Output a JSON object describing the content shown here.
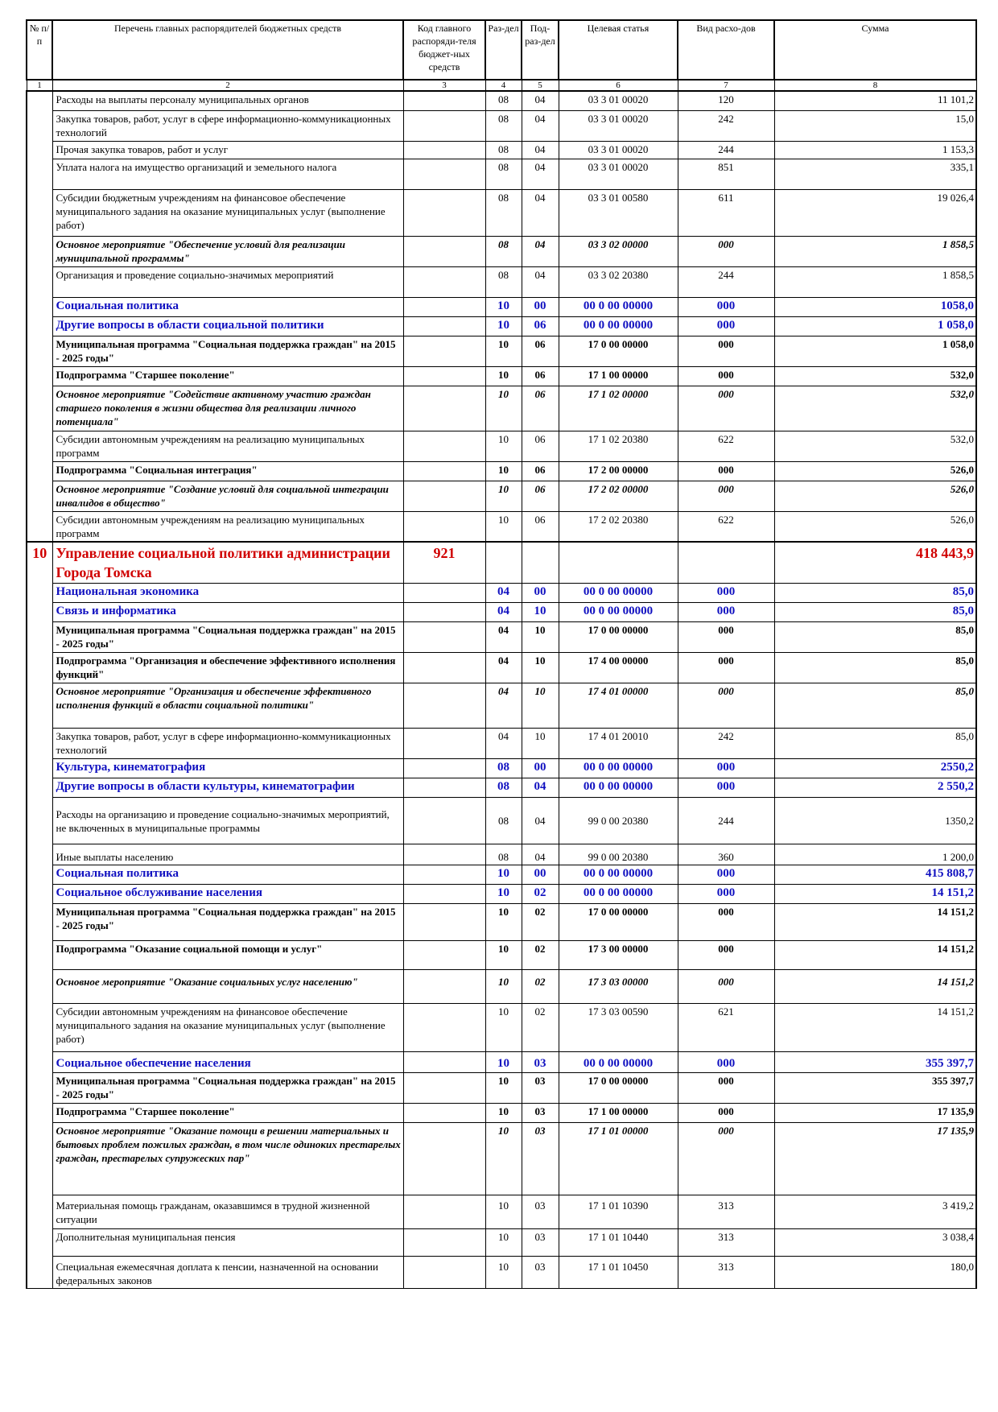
{
  "header": {
    "col1": "№ п/п",
    "col2": "Перечень главных распорядителей бюджетных средств",
    "col3": "Код главного распоряди-теля бюджет-ных средств",
    "col4": "Раз-дел",
    "col5": "Под-раз-дел",
    "col6": "Целевая статья",
    "col7": "Вид расхо-дов",
    "col8": "Сумма"
  },
  "index_row": [
    "1",
    "2",
    "3",
    "4",
    "5",
    "6",
    "7",
    "8"
  ],
  "rows": [
    {
      "style": "normal",
      "num": "",
      "name": "Расходы на выплаты персоналу муниципальных органов",
      "code": "",
      "razdel": "08",
      "podrazdel": "04",
      "target": "03 3 01 00020",
      "vid": "120",
      "sum": "11 101,2",
      "h": 24
    },
    {
      "style": "normal",
      "num": "",
      "name": "Закупка товаров, работ, услуг в сфере информационно-коммуникационных технологий",
      "code": "",
      "razdel": "08",
      "podrazdel": "04",
      "target": "03 3 01 00020",
      "vid": "242",
      "sum": "15,0",
      "h": 38
    },
    {
      "style": "normal",
      "num": "",
      "name": "Прочая закупка товаров, работ и услуг",
      "code": "",
      "razdel": "08",
      "podrazdel": "04",
      "target": "03 3 01 00020",
      "vid": "244",
      "sum": "1 153,3",
      "h": 22
    },
    {
      "style": "normal",
      "num": "",
      "name": "Уплата налога на имущество организаций и земельного налога",
      "code": "",
      "razdel": "08",
      "podrazdel": "04",
      "target": "03 3 01 00020",
      "vid": "851",
      "sum": "335,1",
      "h": 38
    },
    {
      "style": "normal",
      "num": "",
      "name": "Субсидии бюджетным учреждениям на финансовое обеспечение муниципального задания на оказание муниципальных услуг (выполнение работ)",
      "code": "",
      "razdel": "08",
      "podrazdel": "04",
      "target": "03 3 01 00580",
      "vid": "611",
      "sum": "19 026,4",
      "h": 58
    },
    {
      "style": "italic",
      "num": "",
      "name": "Основное мероприятие \"Обеспечение условий для реализации муниципальной программы\"",
      "code": "",
      "razdel": "08",
      "podrazdel": "04",
      "target": "03 3 02 00000",
      "vid": "000",
      "sum": "1 858,5",
      "h": 38
    },
    {
      "style": "normal",
      "num": "",
      "name": "Организация и проведение социально-значимых мероприятий",
      "code": "",
      "razdel": "08",
      "podrazdel": "04",
      "target": "03 3 02 20380",
      "vid": "244",
      "sum": "1 858,5",
      "h": 38
    },
    {
      "style": "blue",
      "num": "",
      "name": "Социальная политика",
      "code": "",
      "razdel": "10",
      "podrazdel": "00",
      "target": "00 0 00 00000",
      "vid": "000",
      "sum": "1058,0",
      "h": 24
    },
    {
      "style": "blue",
      "num": "",
      "name": "Другие вопросы в области социальной политики",
      "code": "",
      "razdel": "10",
      "podrazdel": "06",
      "target": "00 0 00 00000",
      "vid": "000",
      "sum": "1 058,0",
      "h": 24
    },
    {
      "style": "bold",
      "num": "",
      "name": "Муниципальная программа \"Социальная поддержка граждан\" на 2015 - 2025 годы\"",
      "code": "",
      "razdel": "10",
      "podrazdel": "06",
      "target": "17 0 00 00000",
      "vid": "000",
      "sum": "1 058,0",
      "h": 38
    },
    {
      "style": "bold",
      "num": "",
      "name": "Подпрограмма \"Старшее поколение\"",
      "code": "",
      "razdel": "10",
      "podrazdel": "06",
      "target": "17 1 00 00000",
      "vid": "000",
      "sum": "532,0",
      "h": 24
    },
    {
      "style": "italic",
      "num": "",
      "name": "Основное мероприятие \"Содействие активному участию граждан старшего поколения в жизни общества для реализации личного потенциала\"",
      "code": "",
      "razdel": "10",
      "podrazdel": "06",
      "target": "17 1 02 00000",
      "vid": "000",
      "sum": "532,0",
      "h": 56
    },
    {
      "style": "normal",
      "num": "",
      "name": "Субсидии автономным учреждениям на реализацию муниципальных программ",
      "code": "",
      "razdel": "10",
      "podrazdel": "06",
      "target": "17 1 02 20380",
      "vid": "622",
      "sum": "532,0",
      "h": 38
    },
    {
      "style": "bold",
      "num": "",
      "name": "Подпрограмма \"Социальная интеграция\"",
      "code": "",
      "razdel": "10",
      "podrazdel": "06",
      "target": "17 2 00 00000",
      "vid": "000",
      "sum": "526,0",
      "h": 24
    },
    {
      "style": "italic",
      "num": "",
      "name": "Основное мероприятие \"Создание условий для социальной интеграции инвалидов в общество\"",
      "code": "",
      "razdel": "10",
      "podrazdel": "06",
      "target": "17 2 02 00000",
      "vid": "000",
      "sum": "526,0",
      "h": 38
    },
    {
      "style": "normal",
      "num": "",
      "name": "Субсидии автономным учреждениям на реализацию муниципальных программ",
      "code": "",
      "razdel": "10",
      "podrazdel": "06",
      "target": "17 2 02 20380",
      "vid": "622",
      "sum": "526,0",
      "h": 38
    },
    {
      "style": "red",
      "num": "10",
      "name": "Управление социальной политики администрации Города Томска",
      "code": "921",
      "razdel": "",
      "podrazdel": "",
      "target": "",
      "vid": "",
      "sum": "418 443,9",
      "h": 50
    },
    {
      "style": "blue",
      "num": "",
      "name": "Национальная экономика",
      "code": "",
      "razdel": "04",
      "podrazdel": "00",
      "target": "00 0 00 00000",
      "vid": "000",
      "sum": "85,0",
      "h": 24
    },
    {
      "style": "blue",
      "num": "",
      "name": "Связь и информатика",
      "code": "",
      "razdel": "04",
      "podrazdel": "10",
      "target": "00 0 00 00000",
      "vid": "000",
      "sum": "85,0",
      "h": 24
    },
    {
      "style": "bold",
      "num": "",
      "name": "Муниципальная программа \"Социальная поддержка граждан\" на 2015 - 2025 годы\"",
      "code": "",
      "razdel": "04",
      "podrazdel": "10",
      "target": "17 0 00 00000",
      "vid": "000",
      "sum": "85,0",
      "h": 38
    },
    {
      "style": "bold",
      "num": "",
      "name": "Подпрограмма \"Организация и обеспечение эффективного исполнения функций\"",
      "code": "",
      "razdel": "04",
      "podrazdel": "10",
      "target": "17 4 00 00000",
      "vid": "000",
      "sum": "85,0",
      "h": 38
    },
    {
      "style": "italic",
      "num": "",
      "name": "Основное мероприятие \"Организация и обеспечение эффективного исполнения функций в области социальной политики\"",
      "code": "",
      "razdel": "04",
      "podrazdel": "10",
      "target": "17 4 01 00000",
      "vid": "000",
      "sum": "85,0",
      "h": 56
    },
    {
      "style": "normal",
      "num": "",
      "name": "Закупка товаров, работ, услуг в сфере информационно-коммуникационных технологий",
      "code": "",
      "razdel": "04",
      "podrazdel": "10",
      "target": "17 4 01 20010",
      "vid": "242",
      "sum": "85,0",
      "h": 38
    },
    {
      "style": "blue",
      "num": "",
      "name": "Культура, кинематография",
      "code": "",
      "razdel": "08",
      "podrazdel": "00",
      "target": "00 0 00 00000",
      "vid": "000",
      "sum": "2550,2",
      "h": 24
    },
    {
      "style": "blue",
      "num": "",
      "name": "Другие вопросы в области культуры, кинематографии",
      "code": "",
      "razdel": "08",
      "podrazdel": "04",
      "target": "00 0 00 00000",
      "vid": "000",
      "sum": "2 550,2",
      "h": 24
    },
    {
      "style": "normal",
      "num": "",
      "name": "Расходы на организацию и проведение социально-значимых мероприятий, не включенных в муниципальные программы",
      "code": "",
      "razdel": "08",
      "podrazdel": "04",
      "target": "99 0 00 20380",
      "vid": "244",
      "sum": "1350,2",
      "h": 58,
      "valign": "middle"
    },
    {
      "style": "normal",
      "num": "",
      "name": "Иные выплаты населению",
      "code": "",
      "razdel": "08",
      "podrazdel": "04",
      "target": "99 0 00 20380",
      "vid": "360",
      "sum": "1 200,0",
      "h": 26,
      "valign": "bottom"
    },
    {
      "style": "blue",
      "num": "",
      "name": "Социальная политика",
      "code": "",
      "razdel": "10",
      "podrazdel": "00",
      "target": "00 0 00 00000",
      "vid": "000",
      "sum": "415 808,7",
      "h": 24
    },
    {
      "style": "blue",
      "num": "",
      "name": "Социальное обслуживание населения",
      "code": "",
      "razdel": "10",
      "podrazdel": "02",
      "target": "00 0 00 00000",
      "vid": "000",
      "sum": "14 151,2",
      "h": 24
    },
    {
      "style": "bold",
      "num": "",
      "name": "Муниципальная программа \"Социальная поддержка граждан\" на 2015 - 2025 годы\"",
      "code": "",
      "razdel": "10",
      "podrazdel": "02",
      "target": "17 0 00 00000",
      "vid": "000",
      "sum": "14 151,2",
      "h": 46
    },
    {
      "style": "bold",
      "num": "",
      "name": "Подпрограмма \"Оказание социальной помощи и услуг\"",
      "code": "",
      "razdel": "10",
      "podrazdel": "02",
      "target": "17 3 00 00000",
      "vid": "000",
      "sum": "14 151,2",
      "h": 36
    },
    {
      "style": "italic",
      "num": "",
      "name": "Основное мероприятие \"Оказание социальных услуг населению\"",
      "code": "",
      "razdel": "10",
      "podrazdel": "02",
      "target": "17 3 03 00000",
      "vid": "000",
      "sum": "14 151,2",
      "h": 42,
      "pad": 6
    },
    {
      "style": "normal",
      "num": "",
      "name": "Субсидии автономным учреждениям на финансовое обеспечение муниципального задания на оказание муниципальных услуг (выполнение работ)",
      "code": "",
      "razdel": "10",
      "podrazdel": "02",
      "target": "17 3 03 00590",
      "vid": "621",
      "sum": "14 151,2",
      "h": 60
    },
    {
      "style": "blue",
      "num": "",
      "name": "Социальное обеспечение населения",
      "code": "",
      "razdel": "10",
      "podrazdel": "03",
      "target": "00 0 00 00000",
      "vid": "000",
      "sum": "355 397,7",
      "h": 26,
      "valign": "bottom"
    },
    {
      "style": "bold",
      "num": "",
      "name": "Муниципальная программа \"Социальная поддержка граждан\" на 2015 - 2025 годы\"",
      "code": "",
      "razdel": "10",
      "podrazdel": "03",
      "target": "17 0 00 00000",
      "vid": "000",
      "sum": "355 397,7",
      "h": 38
    },
    {
      "style": "bold",
      "num": "",
      "name": "Подпрограмма \"Старшее поколение\"",
      "code": "",
      "razdel": "10",
      "podrazdel": "03",
      "target": "17 1 00 00000",
      "vid": "000",
      "sum": "17 135,9",
      "h": 24
    },
    {
      "style": "italic",
      "num": "",
      "name": "Основное мероприятие \"Оказание помощи в решении материальных и бытовых проблем пожилых граждан, в том числе одиноких престарелых граждан, престарелых супружеских пар\"",
      "code": "",
      "razdel": "10",
      "podrazdel": "03",
      "target": "17 1 01 00000",
      "vid": "000",
      "sum": "17 135,9",
      "h": 90
    },
    {
      "style": "normal",
      "num": "",
      "name": "Материальная помощь гражданам, оказавшимся в трудной жизненной ситуации",
      "code": "",
      "razdel": "10",
      "podrazdel": "03",
      "target": "17 1 01 10390",
      "vid": "313",
      "sum": "3 419,2",
      "h": 42,
      "pad": 4
    },
    {
      "style": "normal",
      "num": "",
      "name": "Дополнительная муниципальная пенсия",
      "code": "",
      "razdel": "10",
      "podrazdel": "03",
      "target": "17 1 01 10440",
      "vid": "313",
      "sum": "3 038,4",
      "h": 34
    },
    {
      "style": "normal",
      "num": "",
      "name": "Специальная ежемесячная доплата к пенсии, назначенной на основании федеральных законов",
      "code": "",
      "razdel": "10",
      "podrazdel": "03",
      "target": "17 1 01 10450",
      "vid": "313",
      "sum": "180,0",
      "h": 40,
      "pad": 4
    }
  ]
}
